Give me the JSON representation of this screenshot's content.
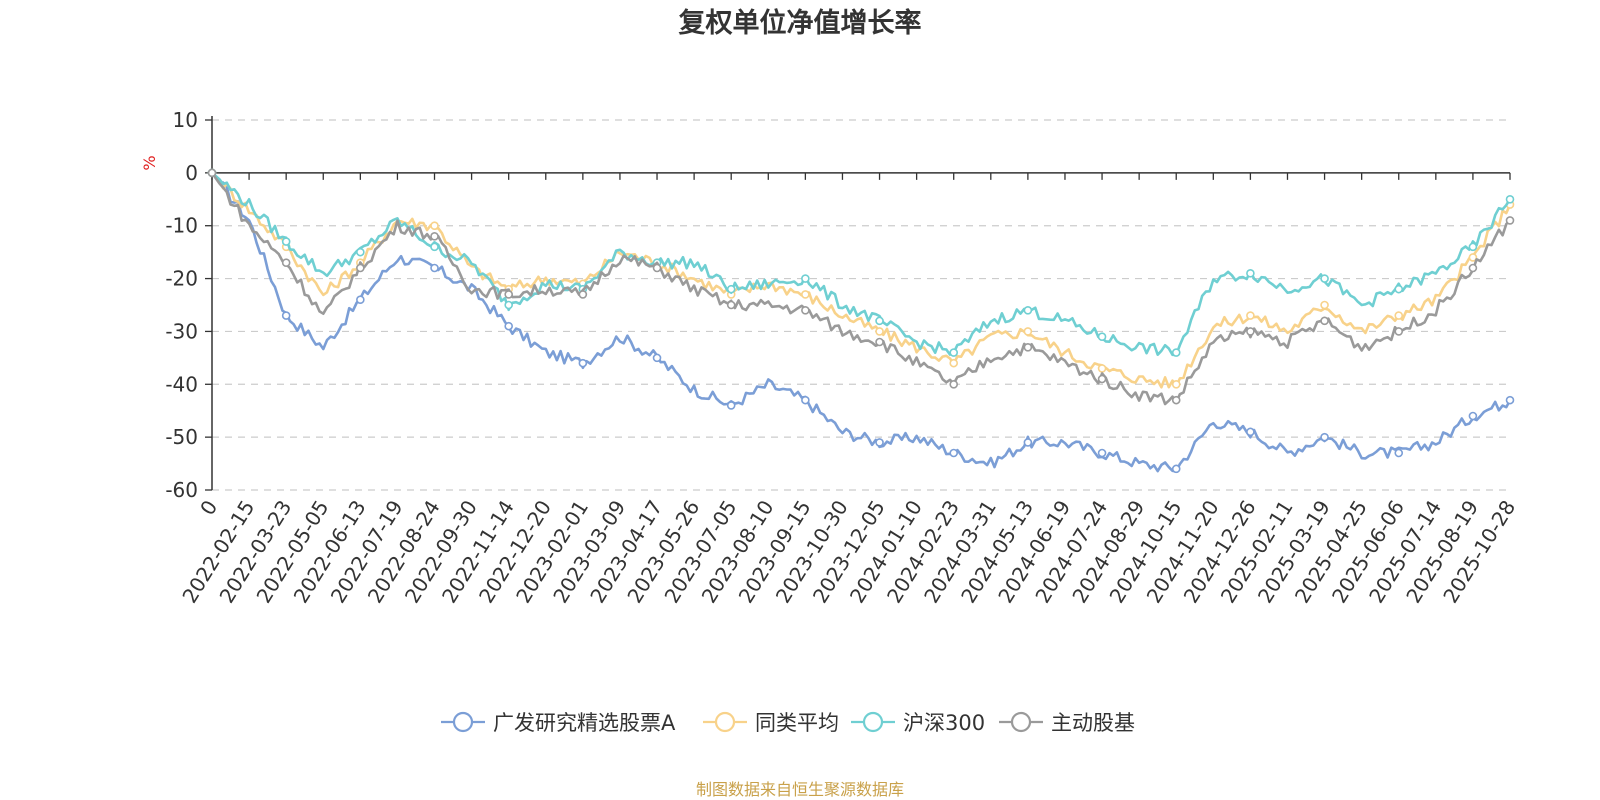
{
  "chart_data": {
    "type": "line",
    "title": "复权单位净值增长率",
    "ylabel": "%",
    "ylim": [
      -60,
      10
    ],
    "yticks": [
      10,
      0,
      -10,
      -20,
      -30,
      -40,
      -50,
      -60
    ],
    "grid": true,
    "legend_position": "bottom-center",
    "source": "制图数据来自恒生聚源数据库",
    "x_ticks": [
      "0",
      "2022-02-15",
      "2022-03-23",
      "2022-05-05",
      "2022-06-13",
      "2022-07-19",
      "2022-08-24",
      "2022-09-30",
      "2022-11-14",
      "2022-12-20",
      "2023-02-01",
      "2023-03-09",
      "2023-04-17",
      "2023-05-26",
      "2023-07-05",
      "2023-08-10",
      "2023-09-15",
      "2023-10-30",
      "2023-12-05",
      "2024-01-10",
      "2024-02-23",
      "2024-03-31",
      "2024-05-13",
      "2024-06-19",
      "2024-07-24",
      "2024-08-29",
      "2024-10-15",
      "2024-11-20",
      "2024-12-26",
      "2025-02-11",
      "2025-03-19",
      "2025-04-25",
      "2025-06-06",
      "2025-07-14",
      "2025-08-19",
      "2025-10-28"
    ],
    "series": [
      {
        "name": "广发研究精选股票A",
        "color": "#7b9ed6",
        "values": [
          0,
          -9,
          -27,
          -33,
          -24,
          -16,
          -18,
          -22,
          -29,
          -34,
          -36,
          -31,
          -35,
          -41,
          -44,
          -40,
          -43,
          -49,
          -51,
          -50,
          -53,
          -55,
          -51,
          -51,
          -53,
          -55,
          -56,
          -47,
          -49,
          -53,
          -50,
          -53,
          -53,
          -51,
          -46,
          -43
        ]
      },
      {
        "name": "同类平均",
        "color": "#f8d28a",
        "values": [
          0,
          -7,
          -14,
          -23,
          -17,
          -9,
          -10,
          -18,
          -22,
          -20,
          -21,
          -15,
          -17,
          -20,
          -23,
          -21,
          -23,
          -27,
          -30,
          -33,
          -36,
          -31,
          -30,
          -34,
          -37,
          -39,
          -40,
          -29,
          -27,
          -30,
          -25,
          -30,
          -27,
          -24,
          -16,
          -6
        ]
      },
      {
        "name": "沪深300",
        "color": "#6fcfd2",
        "values": [
          0,
          -6,
          -13,
          -19,
          -15,
          -9,
          -14,
          -17,
          -25,
          -21,
          -22,
          -15,
          -17,
          -17,
          -22,
          -21,
          -20,
          -25,
          -28,
          -32,
          -34,
          -28,
          -26,
          -28,
          -31,
          -33,
          -34,
          -20,
          -19,
          -22,
          -20,
          -25,
          -22,
          -19,
          -14,
          -5
        ]
      },
      {
        "name": "主动股基",
        "color": "#9a9a9a",
        "values": [
          0,
          -10,
          -17,
          -27,
          -18,
          -10,
          -12,
          -22,
          -23,
          -22,
          -23,
          -16,
          -18,
          -22,
          -25,
          -25,
          -26,
          -30,
          -32,
          -36,
          -40,
          -35,
          -33,
          -36,
          -39,
          -42,
          -43,
          -32,
          -30,
          -32,
          -28,
          -33,
          -30,
          -26,
          -18,
          -9
        ]
      }
    ]
  }
}
